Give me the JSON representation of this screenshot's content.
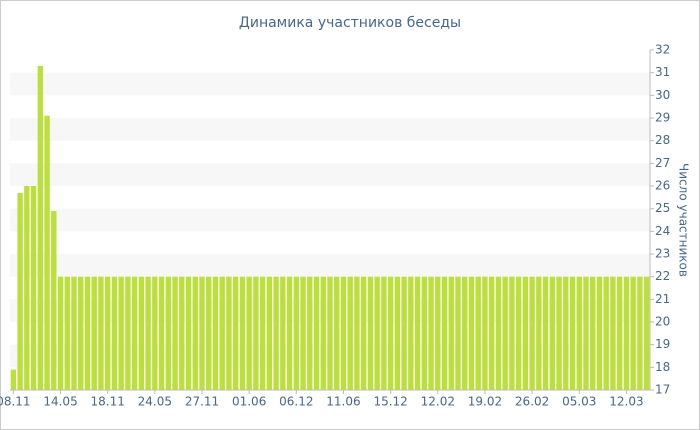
{
  "chart_data": {
    "type": "bar",
    "title": "Динамика участников беседы",
    "y_label": "Число участников",
    "categories": [
      "08.11",
      null,
      null,
      null,
      null,
      null,
      null,
      "14.05",
      null,
      null,
      null,
      null,
      null,
      null,
      "18.11",
      null,
      null,
      null,
      null,
      null,
      null,
      "24.05",
      null,
      null,
      null,
      null,
      null,
      null,
      "27.11",
      null,
      null,
      null,
      null,
      null,
      null,
      "01.06",
      null,
      null,
      null,
      null,
      null,
      null,
      "06.12",
      null,
      null,
      null,
      null,
      null,
      null,
      "11.06",
      null,
      null,
      null,
      null,
      null,
      null,
      "15.12",
      null,
      null,
      null,
      null,
      null,
      null,
      "12.02",
      null,
      null,
      null,
      null,
      null,
      null,
      "19.02",
      null,
      null,
      null,
      null,
      null,
      null,
      "26.02",
      null,
      null,
      null,
      null,
      null,
      null,
      "05.03",
      null,
      null,
      null,
      null,
      null,
      null,
      "12.03",
      null,
      null,
      null
    ],
    "values": [
      17.9,
      25.7,
      26,
      26,
      31.3,
      29.1,
      24.9,
      22,
      22,
      22,
      22,
      22,
      22,
      22,
      22,
      22,
      22,
      22,
      22,
      22,
      22,
      22,
      22,
      22,
      22,
      22,
      22,
      22,
      22,
      22,
      22,
      22,
      22,
      22,
      22,
      22,
      22,
      22,
      22,
      22,
      22,
      22,
      22,
      22,
      22,
      22,
      22,
      22,
      22,
      22,
      22,
      22,
      22,
      22,
      22,
      22,
      22,
      22,
      22,
      22,
      22,
      22,
      22,
      22,
      22,
      22,
      22,
      22,
      22,
      22,
      22,
      22,
      22,
      22,
      22,
      22,
      22,
      22,
      22,
      22,
      22,
      22,
      22,
      22,
      22,
      22,
      22,
      22,
      22,
      22,
      22,
      22,
      22,
      22,
      22
    ],
    "color": "#bbe03b",
    "ylim": [
      17,
      32
    ],
    "yticks": [
      17,
      18,
      19,
      20,
      21,
      22,
      23,
      24,
      25,
      26,
      27,
      28,
      29,
      30,
      31,
      32
    ],
    "grid": true
  }
}
